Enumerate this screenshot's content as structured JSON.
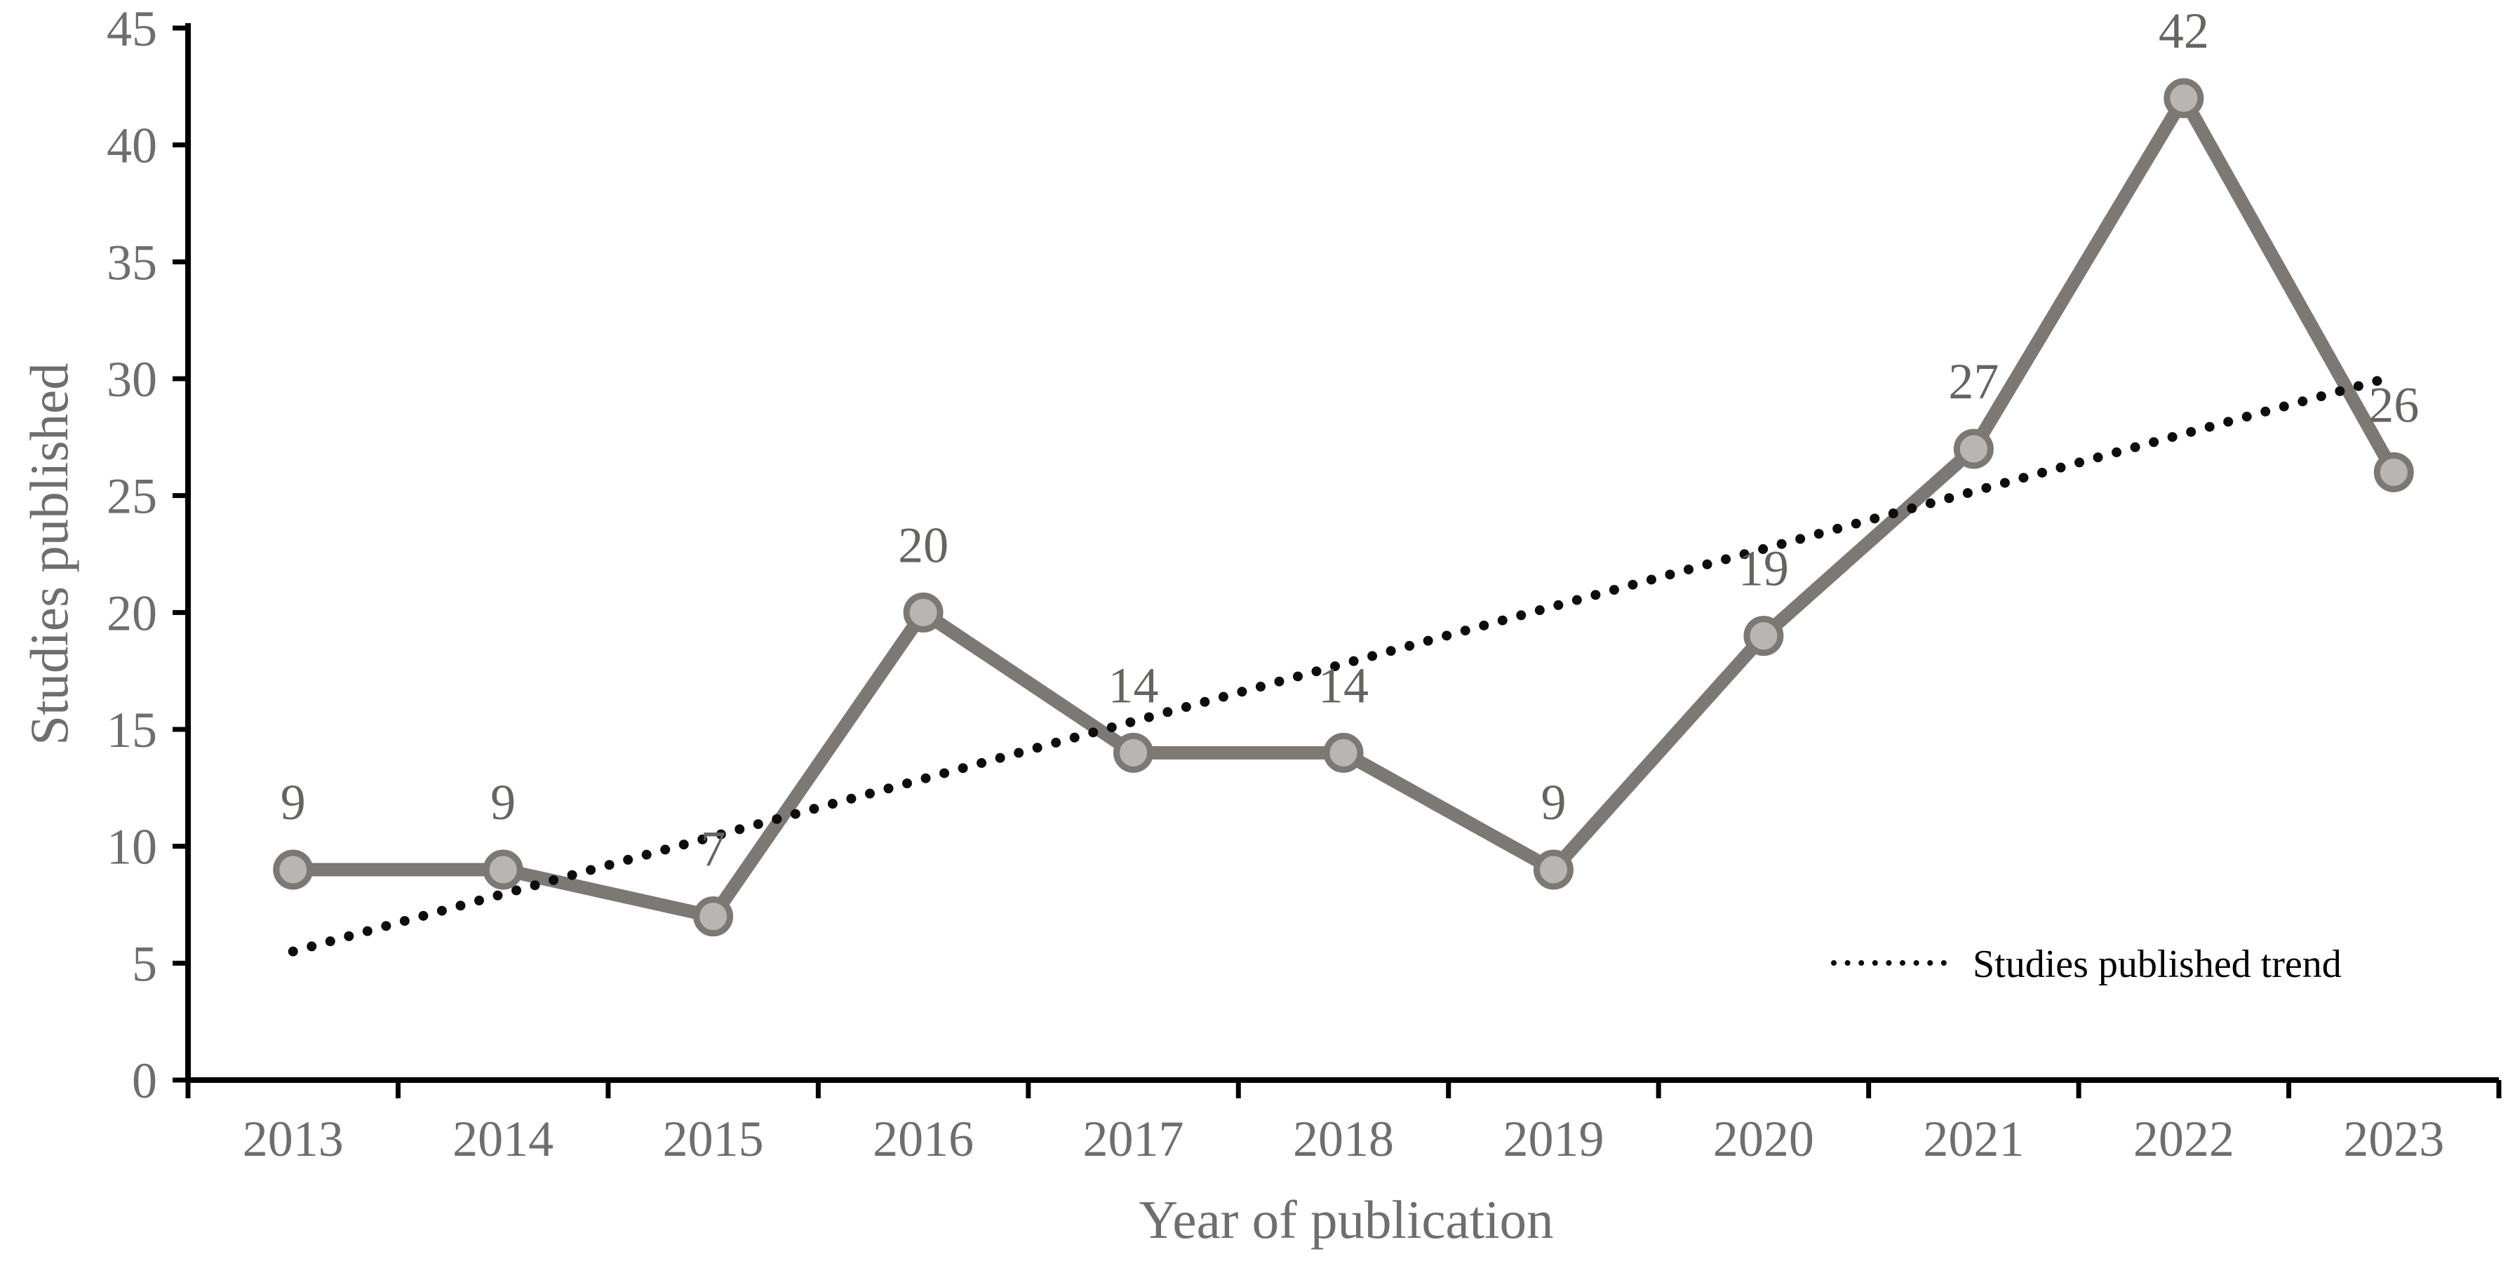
{
  "chart_data": {
    "type": "line",
    "title": "",
    "categories": [
      "2013",
      "2014",
      "2015",
      "2016",
      "2017",
      "2018",
      "2019",
      "2020",
      "2021",
      "2022",
      "2023"
    ],
    "series": [
      {
        "name": "Studies published",
        "values": [
          9,
          9,
          7,
          20,
          14,
          14,
          9,
          19,
          27,
          42,
          26
        ]
      }
    ],
    "data_labels_shown": true,
    "trend": {
      "label": "Studies published trend",
      "style": "dotted",
      "start_value": 5.5,
      "end_value": 30.1
    },
    "xlabel": "Year of publication",
    "ylabel": "Studies published",
    "ylim": [
      0,
      45
    ],
    "yticks": [
      0,
      5,
      10,
      15,
      20,
      25,
      30,
      35,
      40,
      45
    ],
    "grid": false,
    "legend_position": "inside-bottom-right",
    "colors": {
      "series_line": "#7c7874",
      "marker_fill": "#b9b5b2",
      "marker_stroke": "#7c7874",
      "trend_line": "#0d0d0d",
      "axis_line": "#000000",
      "tick_text": "#6e6e6e",
      "data_label_text": "#666461",
      "legend_text": "#000000",
      "background": "#ffffff"
    }
  }
}
